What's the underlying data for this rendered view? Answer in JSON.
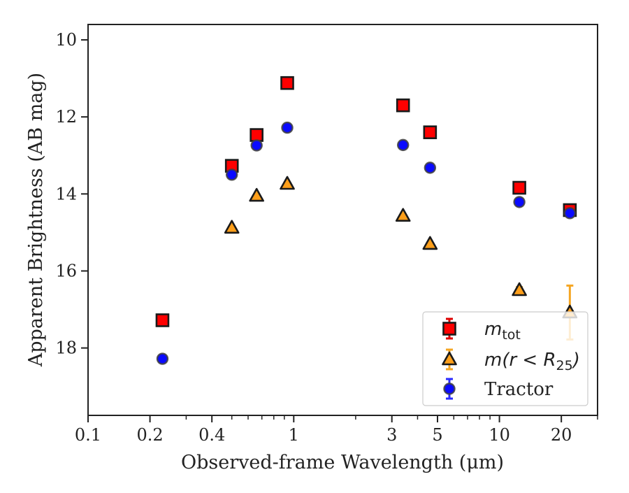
{
  "chart_data": {
    "type": "scatter",
    "title": "",
    "xlabel": "Observed-frame Wavelength (μm)",
    "ylabel": "Apparent Brightness (AB mag)",
    "xscale": "log",
    "xlim": [
      0.1,
      30
    ],
    "ylim": [
      19.75,
      9.6
    ],
    "y_inverted": true,
    "grid": false,
    "legend_position": "bottom-right",
    "xticks": [
      {
        "value": 0.1,
        "label": "0.1"
      },
      {
        "value": 0.2,
        "label": "0.2"
      },
      {
        "value": 0.4,
        "label": "0.4"
      },
      {
        "value": 1,
        "label": "1"
      },
      {
        "value": 3,
        "label": "3"
      },
      {
        "value": 5,
        "label": "5"
      },
      {
        "value": 10,
        "label": "10"
      },
      {
        "value": 20,
        "label": "20"
      }
    ],
    "yticks": [
      {
        "value": 10,
        "label": "10"
      },
      {
        "value": 12,
        "label": "12"
      },
      {
        "value": 14,
        "label": "14"
      },
      {
        "value": 16,
        "label": "16"
      },
      {
        "value": 18,
        "label": "18"
      }
    ],
    "series": [
      {
        "name": "m_tot",
        "label_main": "m",
        "label_sub": "tot",
        "marker": "square",
        "color": "#ff0000",
        "edgecolor": "#1a1a1a",
        "errcolor": "#dd0000",
        "points": [
          {
            "x": 0.23,
            "y": 17.28
          },
          {
            "x": 0.5,
            "y": 13.27
          },
          {
            "x": 0.66,
            "y": 12.47
          },
          {
            "x": 0.93,
            "y": 11.12
          },
          {
            "x": 3.4,
            "y": 11.7
          },
          {
            "x": 4.6,
            "y": 12.4
          },
          {
            "x": 12.5,
            "y": 13.84
          },
          {
            "x": 22.0,
            "y": 14.42,
            "err": 0.05
          }
        ]
      },
      {
        "name": "m(r < R25)",
        "label_main": "m(r < R",
        "label_sub": "25",
        "label_end": ")",
        "marker": "triangle",
        "color": "#ff9f1a",
        "edgecolor": "#1a1a1a",
        "errcolor": "#f5a623",
        "points": [
          {
            "x": 0.5,
            "y": 14.88
          },
          {
            "x": 0.66,
            "y": 14.05
          },
          {
            "x": 0.93,
            "y": 13.74
          },
          {
            "x": 3.4,
            "y": 14.57
          },
          {
            "x": 4.6,
            "y": 15.3
          },
          {
            "x": 12.5,
            "y": 16.5,
            "err": 0.08
          },
          {
            "x": 22.0,
            "y": 17.08,
            "err": 0.7
          }
        ]
      },
      {
        "name": "Tractor",
        "label_main": "Tractor",
        "marker": "circle",
        "color": "#0a0aff",
        "edgecolor": "#404040",
        "errcolor": "#2a2aff",
        "points": [
          {
            "x": 0.23,
            "y": 18.28
          },
          {
            "x": 0.5,
            "y": 13.5
          },
          {
            "x": 0.66,
            "y": 12.74
          },
          {
            "x": 0.93,
            "y": 12.28
          },
          {
            "x": 3.4,
            "y": 12.73
          },
          {
            "x": 4.6,
            "y": 13.32
          },
          {
            "x": 12.5,
            "y": 14.21
          },
          {
            "x": 22.0,
            "y": 14.5
          }
        ]
      }
    ]
  }
}
